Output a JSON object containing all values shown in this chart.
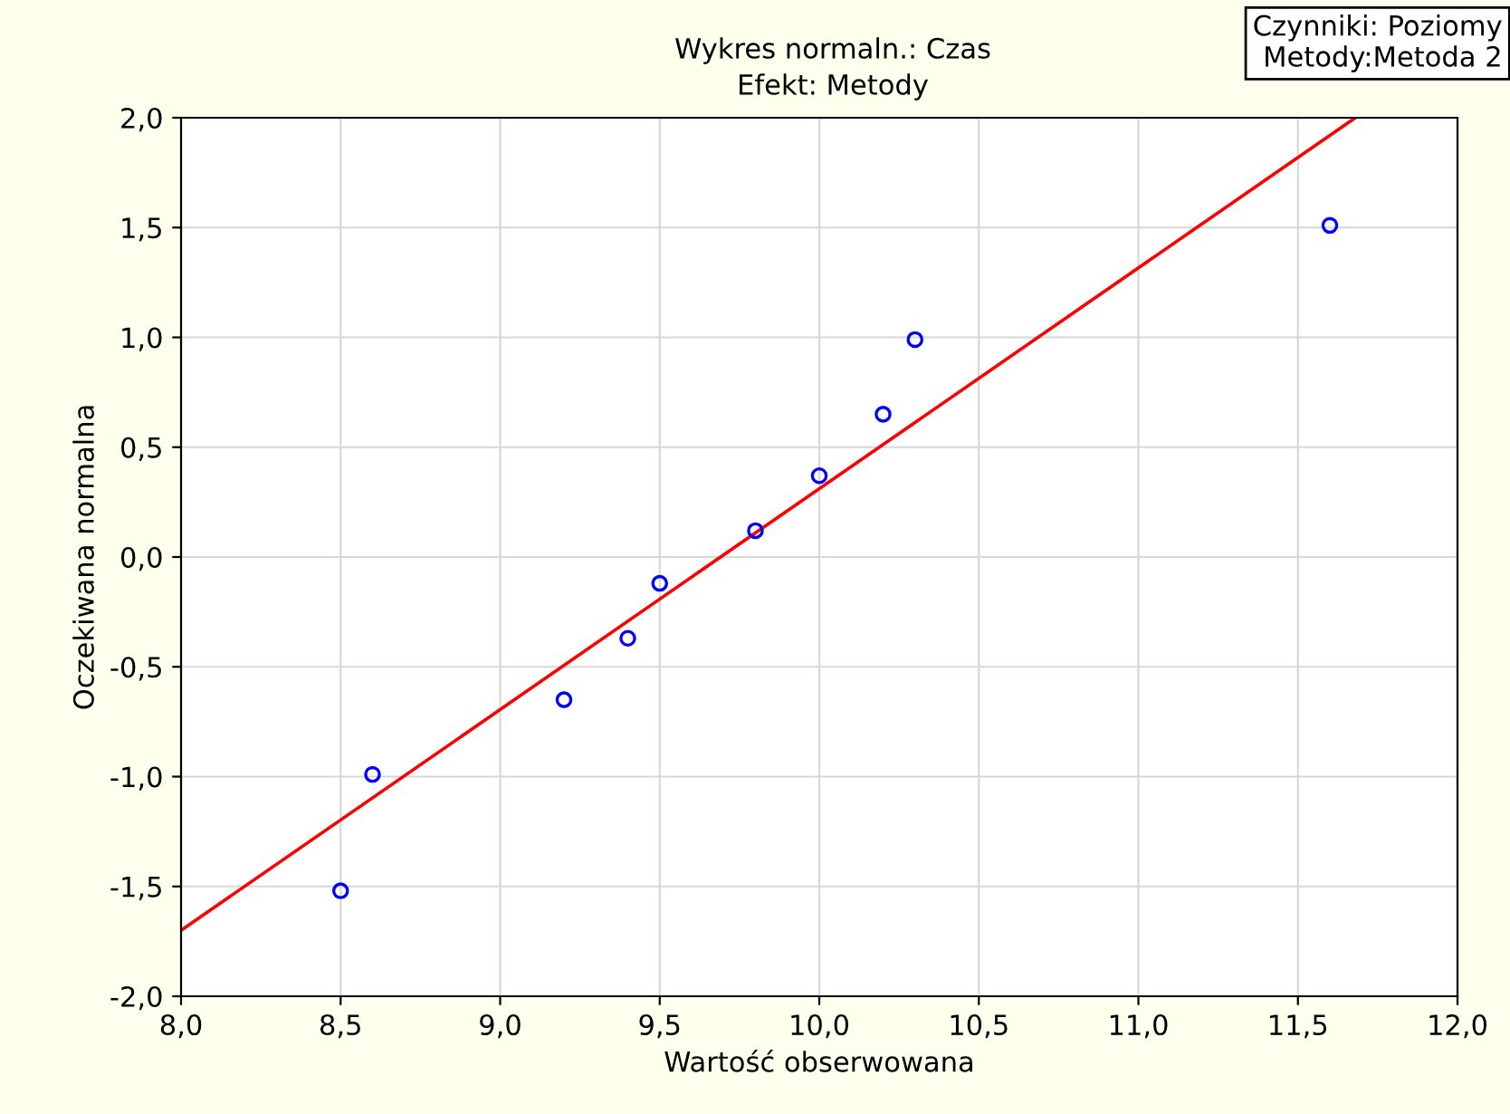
{
  "chart_data": {
    "type": "scatter",
    "title": "Wykres normaln.: Czas",
    "subtitle": "Efekt: Metody",
    "xlabel": "Wartość obserwowana",
    "ylabel": "Oczekiwana normalna",
    "annotations": [
      "Czynniki: Poziomy\nMetody:Metoda 2"
    ],
    "x": [
      8.5,
      8.6,
      9.2,
      9.4,
      9.5,
      9.8,
      10.0,
      10.2,
      10.3,
      11.6
    ],
    "series": [
      {
        "color": "#0000ff",
        "marker": "circle",
        "values": [
          -1.52,
          -0.99,
          -0.65,
          -0.37,
          -0.12,
          0.12,
          0.37,
          0.65,
          0.99,
          1.51
        ]
      },
      {
        "type": "line",
        "color": "#ff0000",
        "marker": "none",
        "x": [
          8.0,
          11.68
        ],
        "values": [
          -1.7,
          2.0
        ]
      }
    ],
    "xlim": [
      8.0,
      12.0
    ],
    "ylim": [
      -2.0,
      2.0
    ],
    "xticks": [
      {
        "value": 8.0,
        "label": "8,0"
      },
      {
        "value": 8.5,
        "label": "8,5"
      },
      {
        "value": 9.0,
        "label": "9,0"
      },
      {
        "value": 9.5,
        "label": "9,5"
      },
      {
        "value": 10.0,
        "label": "10,0"
      },
      {
        "value": 10.5,
        "label": "10,5"
      },
      {
        "value": 11.0,
        "label": "11,0"
      },
      {
        "value": 11.5,
        "label": "11,5"
      },
      {
        "value": 12.0,
        "label": "12,0"
      }
    ],
    "yticks": [
      {
        "value": -2.0,
        "label": "-2,0"
      },
      {
        "value": -1.5,
        "label": "-1,5"
      },
      {
        "value": -1.0,
        "label": "-1,0"
      },
      {
        "value": -0.5,
        "label": "-0,5"
      },
      {
        "value": 0.0,
        "label": "0,0"
      },
      {
        "value": 0.5,
        "label": "0,5"
      },
      {
        "value": 1.0,
        "label": "1,0"
      },
      {
        "value": 1.5,
        "label": "1,5"
      },
      {
        "value": 2.0,
        "label": "2,0"
      }
    ],
    "grid": true
  }
}
